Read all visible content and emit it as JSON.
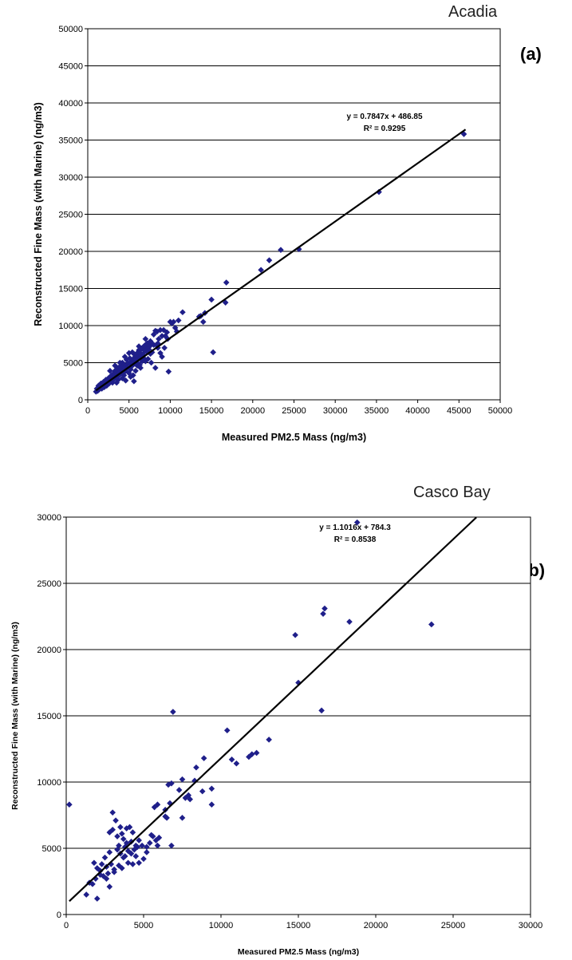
{
  "chart_data": [
    {
      "type": "scatter",
      "site_label": "Acadia",
      "panel_label": "(a)",
      "xlabel": "Measured PM2.5 Mass (ng/m3)",
      "ylabel": "Reconstructed Fine Mass (with Marine) (ng/m3)",
      "xlim": [
        0,
        50000
      ],
      "ylim": [
        0,
        50000
      ],
      "x_ticks": [
        "0",
        "5000",
        "10000",
        "15000",
        "20000",
        "25000",
        "30000",
        "35000",
        "40000",
        "45000",
        "50000"
      ],
      "y_ticks": [
        "0",
        "5000",
        "10000",
        "15000",
        "20000",
        "25000",
        "30000",
        "35000",
        "40000",
        "45000",
        "50000"
      ],
      "grid": "horizontal",
      "trendline": {
        "equation": "y = 0.7847x + 486.85",
        "r2": "R² = 0.9295",
        "slope": 0.7847,
        "intercept": 486.85,
        "x_range": [
          1000,
          45800
        ]
      },
      "marker_color": "#1f1f8a",
      "points": [
        [
          45600,
          35800
        ],
        [
          35300,
          28000
        ],
        [
          25600,
          20300
        ],
        [
          23400,
          20200
        ],
        [
          22000,
          18800
        ],
        [
          21000,
          17500
        ],
        [
          16800,
          15800
        ],
        [
          16700,
          13100
        ],
        [
          15000,
          13500
        ],
        [
          15200,
          6400
        ],
        [
          14200,
          11700
        ],
        [
          14000,
          10500
        ],
        [
          13700,
          11300
        ],
        [
          13500,
          11200
        ],
        [
          11500,
          11800
        ],
        [
          11000,
          10700
        ],
        [
          10800,
          9200
        ],
        [
          10400,
          10500
        ],
        [
          10200,
          10300
        ],
        [
          10000,
          10500
        ],
        [
          9800,
          3800
        ],
        [
          9600,
          9100
        ],
        [
          9400,
          8600
        ],
        [
          9200,
          9400
        ],
        [
          9000,
          8600
        ],
        [
          9000,
          5800
        ],
        [
          8800,
          9400
        ],
        [
          8600,
          8200
        ],
        [
          8500,
          7600
        ],
        [
          8400,
          9200
        ],
        [
          8200,
          9300
        ],
        [
          8200,
          4300
        ],
        [
          8000,
          8800
        ],
        [
          8000,
          7400
        ],
        [
          7800,
          7600
        ],
        [
          7800,
          6400
        ],
        [
          7600,
          7900
        ],
        [
          7500,
          7200
        ],
        [
          7400,
          6800
        ],
        [
          7300,
          5500
        ],
        [
          7200,
          7600
        ],
        [
          7100,
          6900
        ],
        [
          7000,
          7400
        ],
        [
          7000,
          5200
        ],
        [
          6900,
          6600
        ],
        [
          6800,
          7200
        ],
        [
          6700,
          6100
        ],
        [
          6600,
          5200
        ],
        [
          6500,
          6900
        ],
        [
          6400,
          6300
        ],
        [
          6400,
          4300
        ],
        [
          6300,
          5900
        ],
        [
          6200,
          6700
        ],
        [
          6100,
          5600
        ],
        [
          6000,
          6300
        ],
        [
          6000,
          4600
        ],
        [
          5900,
          5300
        ],
        [
          5800,
          5900
        ],
        [
          5700,
          4900
        ],
        [
          5600,
          6200
        ],
        [
          5600,
          2500
        ],
        [
          5500,
          5500
        ],
        [
          5400,
          4600
        ],
        [
          5300,
          5200
        ],
        [
          5200,
          4100
        ],
        [
          5100,
          5600
        ],
        [
          5000,
          6300
        ],
        [
          5000,
          3600
        ],
        [
          4900,
          4900
        ],
        [
          4800,
          4400
        ],
        [
          4700,
          5400
        ],
        [
          4600,
          3900
        ],
        [
          4500,
          4700
        ],
        [
          4400,
          3300
        ],
        [
          4300,
          4400
        ],
        [
          4200,
          5000
        ],
        [
          4200,
          2900
        ],
        [
          4100,
          3900
        ],
        [
          4000,
          4600
        ],
        [
          3900,
          3400
        ],
        [
          3800,
          4200
        ],
        [
          3700,
          2700
        ],
        [
          3600,
          3800
        ],
        [
          3500,
          4400
        ],
        [
          3500,
          2300
        ],
        [
          3400,
          3300
        ],
        [
          3300,
          3900
        ],
        [
          3200,
          2800
        ],
        [
          3100,
          3500
        ],
        [
          3000,
          2300
        ],
        [
          2900,
          3300
        ],
        [
          2800,
          2700
        ],
        [
          2700,
          3100
        ],
        [
          2600,
          2200
        ],
        [
          2500,
          2900
        ],
        [
          2400,
          2500
        ],
        [
          2300,
          1900
        ],
        [
          2200,
          2700
        ],
        [
          2100,
          2200
        ],
        [
          2000,
          1700
        ],
        [
          1900,
          2400
        ],
        [
          1800,
          1900
        ],
        [
          1700,
          1500
        ],
        [
          1600,
          2200
        ],
        [
          1500,
          1700
        ],
        [
          1400,
          1400
        ],
        [
          1300,
          1900
        ],
        [
          1200,
          1200
        ],
        [
          1100,
          1500
        ],
        [
          1000,
          1100
        ],
        [
          6300,
          4700
        ],
        [
          5800,
          3900
        ],
        [
          5200,
          3100
        ],
        [
          4600,
          2600
        ],
        [
          7700,
          5000
        ],
        [
          8800,
          6300
        ],
        [
          9300,
          7000
        ],
        [
          7000,
          8200
        ],
        [
          6200,
          7200
        ],
        [
          5400,
          6400
        ],
        [
          4500,
          5800
        ],
        [
          3900,
          5000
        ],
        [
          3300,
          4600
        ],
        [
          2700,
          3900
        ],
        [
          6800,
          5600
        ],
        [
          7600,
          6200
        ],
        [
          8500,
          7000
        ],
        [
          9700,
          8200
        ],
        [
          10600,
          9700
        ],
        [
          5500,
          3300
        ],
        [
          4300,
          3700
        ],
        [
          3600,
          3100
        ],
        [
          3000,
          2800
        ],
        [
          2500,
          2400
        ],
        [
          6000,
          5000
        ],
        [
          6600,
          5700
        ],
        [
          5200,
          4800
        ],
        [
          4700,
          4200
        ],
        [
          7200,
          6400
        ],
        [
          8300,
          7400
        ]
      ]
    },
    {
      "type": "scatter",
      "site_label": "Casco Bay",
      "panel_label": "(b)",
      "xlabel": "Measured PM2.5 Mass (ng/m3)",
      "ylabel": "Reconstructed Fine Mass (with Marine) (ng/m3)",
      "xlim": [
        0,
        30000
      ],
      "ylim": [
        0,
        30000
      ],
      "x_ticks": [
        "0",
        "5000",
        "10000",
        "15000",
        "20000",
        "25000",
        "30000"
      ],
      "y_ticks": [
        "0",
        "5000",
        "10000",
        "15000",
        "20000",
        "25000",
        "30000"
      ],
      "grid": "horizontal",
      "trendline": {
        "equation": "y = 1.1016x + 784.3",
        "r2": "R² = 0.8538",
        "slope": 1.1016,
        "intercept": 784.3,
        "x_range": [
          200,
          26500
        ]
      },
      "marker_color": "#1f1f8a",
      "points": [
        [
          18800,
          29600
        ],
        [
          16700,
          23100
        ],
        [
          16600,
          22700
        ],
        [
          18300,
          22100
        ],
        [
          23600,
          21900
        ],
        [
          14800,
          21100
        ],
        [
          15000,
          17500
        ],
        [
          16500,
          15400
        ],
        [
          6900,
          15300
        ],
        [
          10400,
          13900
        ],
        [
          13100,
          13200
        ],
        [
          12300,
          12200
        ],
        [
          12000,
          12100
        ],
        [
          11800,
          11900
        ],
        [
          10700,
          11700
        ],
        [
          11000,
          11400
        ],
        [
          8400,
          11100
        ],
        [
          8900,
          11800
        ],
        [
          7500,
          10200
        ],
        [
          8300,
          10100
        ],
        [
          9400,
          9500
        ],
        [
          6800,
          9900
        ],
        [
          6600,
          9800
        ],
        [
          7300,
          9400
        ],
        [
          8800,
          9300
        ],
        [
          7900,
          9000
        ],
        [
          7700,
          8800
        ],
        [
          8000,
          8700
        ],
        [
          9400,
          8300
        ],
        [
          6700,
          8400
        ],
        [
          6400,
          7900
        ],
        [
          6500,
          7300
        ],
        [
          5900,
          8300
        ],
        [
          5700,
          8100
        ],
        [
          6400,
          7400
        ],
        [
          7500,
          7300
        ],
        [
          6800,
          5200
        ],
        [
          6000,
          5800
        ],
        [
          5800,
          5600
        ],
        [
          5600,
          5900
        ],
        [
          5900,
          5200
        ],
        [
          5400,
          5400
        ],
        [
          5200,
          5100
        ],
        [
          4900,
          5200
        ],
        [
          4600,
          5100
        ],
        [
          4400,
          4900
        ],
        [
          4500,
          5200
        ],
        [
          4200,
          5500
        ],
        [
          4300,
          6200
        ],
        [
          4100,
          6600
        ],
        [
          3900,
          5400
        ],
        [
          3700,
          5700
        ],
        [
          3600,
          6100
        ],
        [
          3500,
          6600
        ],
        [
          3300,
          5900
        ],
        [
          3200,
          7100
        ],
        [
          3000,
          7700
        ],
        [
          2800,
          6200
        ],
        [
          3000,
          6400
        ],
        [
          3400,
          5200
        ],
        [
          3800,
          5100
        ],
        [
          4000,
          4800
        ],
        [
          4200,
          4600
        ],
        [
          3500,
          4600
        ],
        [
          3300,
          4900
        ],
        [
          3800,
          4400
        ],
        [
          4000,
          3900
        ],
        [
          3600,
          3500
        ],
        [
          3400,
          3700
        ],
        [
          3100,
          3200
        ],
        [
          2900,
          3800
        ],
        [
          2600,
          3600
        ],
        [
          2500,
          4300
        ],
        [
          2700,
          3100
        ],
        [
          2400,
          2900
        ],
        [
          2200,
          3300
        ],
        [
          2000,
          3500
        ],
        [
          1900,
          2700
        ],
        [
          1800,
          3900
        ],
        [
          1700,
          2300
        ],
        [
          1500,
          2400
        ],
        [
          1300,
          1500
        ],
        [
          2000,
          1200
        ],
        [
          2200,
          3000
        ],
        [
          2600,
          2700
        ],
        [
          2800,
          2100
        ],
        [
          3100,
          3400
        ],
        [
          4700,
          3900
        ],
        [
          5000,
          4200
        ],
        [
          4300,
          3800
        ],
        [
          200,
          8300
        ],
        [
          2800,
          4700
        ],
        [
          3700,
          4300
        ],
        [
          4500,
          4400
        ],
        [
          5200,
          4700
        ],
        [
          2300,
          3800
        ],
        [
          3900,
          6500
        ],
        [
          4700,
          5600
        ],
        [
          5500,
          6000
        ]
      ]
    }
  ]
}
